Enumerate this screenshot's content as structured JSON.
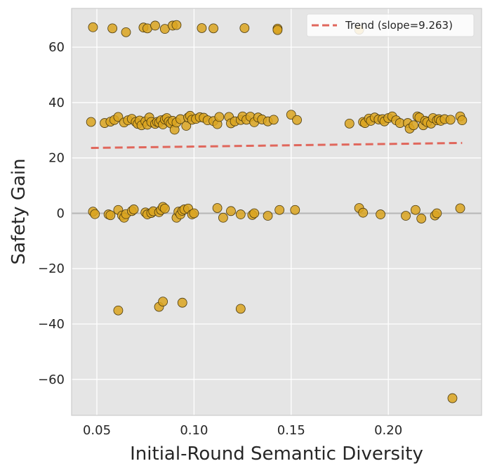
{
  "chart_data": {
    "type": "scatter",
    "title": "",
    "xlabel": "Initial-Round Semantic Diversity",
    "ylabel": "Safety Gain",
    "xlim": [
      0.037,
      0.248
    ],
    "ylim": [
      -73,
      74
    ],
    "xticks": [
      0.05,
      0.1,
      0.15,
      0.2
    ],
    "xtick_labels": [
      "0.05",
      "0.10",
      "0.15",
      "0.20"
    ],
    "yticks": [
      -60,
      -40,
      -20,
      0,
      20,
      40,
      60
    ],
    "ytick_labels": [
      "−60",
      "−40",
      "−20",
      "0",
      "20",
      "40",
      "60"
    ],
    "grid": true,
    "zero_line": 0,
    "legend": {
      "location": "top-right",
      "entries": [
        {
          "label": "Trend (slope=9.263)"
        }
      ]
    },
    "point_color": "#DAA520",
    "point_edge": "#4a3a10",
    "trend_color": "#E0675C",
    "trend": {
      "slope": 9.263,
      "x": [
        0.047,
        0.238
      ],
      "y": [
        23.6,
        25.4
      ]
    },
    "points": [
      [
        0.048,
        67.2
      ],
      [
        0.058,
        66.8
      ],
      [
        0.065,
        65.4
      ],
      [
        0.074,
        67.1
      ],
      [
        0.076,
        66.8
      ],
      [
        0.08,
        67.8
      ],
      [
        0.085,
        66.6
      ],
      [
        0.089,
        67.8
      ],
      [
        0.091,
        68.0
      ],
      [
        0.104,
        66.9
      ],
      [
        0.11,
        66.8
      ],
      [
        0.126,
        66.9
      ],
      [
        0.143,
        66.7
      ],
      [
        0.143,
        66.2
      ],
      [
        0.185,
        66.3
      ],
      [
        0.047,
        33.0
      ],
      [
        0.054,
        32.6
      ],
      [
        0.057,
        33.1
      ],
      [
        0.059,
        33.7
      ],
      [
        0.061,
        34.8
      ],
      [
        0.064,
        32.8
      ],
      [
        0.066,
        33.6
      ],
      [
        0.068,
        34.1
      ],
      [
        0.07,
        33.0
      ],
      [
        0.071,
        32.3
      ],
      [
        0.072,
        33.5
      ],
      [
        0.073,
        31.8
      ],
      [
        0.075,
        33.2
      ],
      [
        0.076,
        32.0
      ],
      [
        0.077,
        34.6
      ],
      [
        0.078,
        33.0
      ],
      [
        0.08,
        32.3
      ],
      [
        0.081,
        33.0
      ],
      [
        0.082,
        32.8
      ],
      [
        0.083,
        33.6
      ],
      [
        0.084,
        32.1
      ],
      [
        0.085,
        33.9
      ],
      [
        0.086,
        34.4
      ],
      [
        0.087,
        33.1
      ],
      [
        0.088,
        32.5
      ],
      [
        0.089,
        33.4
      ],
      [
        0.09,
        30.2
      ],
      [
        0.091,
        32.8
      ],
      [
        0.093,
        34.0
      ],
      [
        0.096,
        31.6
      ],
      [
        0.097,
        34.6
      ],
      [
        0.098,
        35.2
      ],
      [
        0.099,
        33.8
      ],
      [
        0.101,
        34.1
      ],
      [
        0.103,
        34.7
      ],
      [
        0.105,
        34.5
      ],
      [
        0.107,
        33.6
      ],
      [
        0.11,
        33.3
      ],
      [
        0.112,
        32.2
      ],
      [
        0.113,
        34.8
      ],
      [
        0.118,
        34.8
      ],
      [
        0.119,
        32.5
      ],
      [
        0.121,
        33.2
      ],
      [
        0.124,
        33.7
      ],
      [
        0.125,
        35.0
      ],
      [
        0.127,
        33.8
      ],
      [
        0.129,
        34.9
      ],
      [
        0.131,
        32.9
      ],
      [
        0.133,
        34.6
      ],
      [
        0.135,
        33.9
      ],
      [
        0.138,
        33.2
      ],
      [
        0.141,
        33.8
      ],
      [
        0.15,
        35.6
      ],
      [
        0.153,
        33.7
      ],
      [
        0.18,
        32.4
      ],
      [
        0.187,
        33.0
      ],
      [
        0.188,
        32.6
      ],
      [
        0.19,
        34.2
      ],
      [
        0.191,
        33.4
      ],
      [
        0.193,
        34.6
      ],
      [
        0.195,
        33.9
      ],
      [
        0.197,
        34.0
      ],
      [
        0.198,
        33.2
      ],
      [
        0.2,
        34.4
      ],
      [
        0.202,
        35.0
      ],
      [
        0.204,
        33.6
      ],
      [
        0.206,
        32.6
      ],
      [
        0.21,
        32.6
      ],
      [
        0.211,
        30.6
      ],
      [
        0.213,
        31.8
      ],
      [
        0.215,
        35.0
      ],
      [
        0.216,
        34.6
      ],
      [
        0.218,
        31.8
      ],
      [
        0.219,
        33.4
      ],
      [
        0.22,
        32.9
      ],
      [
        0.222,
        32.4
      ],
      [
        0.223,
        34.4
      ],
      [
        0.225,
        33.6
      ],
      [
        0.226,
        34.0
      ],
      [
        0.227,
        33.4
      ],
      [
        0.229,
        34.0
      ],
      [
        0.232,
        33.8
      ],
      [
        0.237,
        35.0
      ],
      [
        0.238,
        33.6
      ],
      [
        0.048,
        0.6
      ],
      [
        0.049,
        -0.3
      ],
      [
        0.056,
        -0.4
      ],
      [
        0.057,
        -0.7
      ],
      [
        0.061,
        1.2
      ],
      [
        0.063,
        -0.8
      ],
      [
        0.064,
        -1.6
      ],
      [
        0.065,
        -0.3
      ],
      [
        0.068,
        0.8
      ],
      [
        0.069,
        1.4
      ],
      [
        0.075,
        0.3
      ],
      [
        0.076,
        -0.4
      ],
      [
        0.078,
        0.1
      ],
      [
        0.079,
        0.7
      ],
      [
        0.082,
        0.4
      ],
      [
        0.083,
        1.2
      ],
      [
        0.084,
        2.3
      ],
      [
        0.085,
        1.7
      ],
      [
        0.091,
        -1.6
      ],
      [
        0.092,
        0.6
      ],
      [
        0.093,
        -0.4
      ],
      [
        0.094,
        0.9
      ],
      [
        0.095,
        1.4
      ],
      [
        0.097,
        1.7
      ],
      [
        0.099,
        -0.4
      ],
      [
        0.1,
        0.0
      ],
      [
        0.112,
        1.9
      ],
      [
        0.115,
        -1.6
      ],
      [
        0.119,
        0.8
      ],
      [
        0.124,
        -0.4
      ],
      [
        0.13,
        -0.6
      ],
      [
        0.131,
        0.0
      ],
      [
        0.138,
        -0.9
      ],
      [
        0.144,
        1.2
      ],
      [
        0.152,
        1.2
      ],
      [
        0.185,
        1.9
      ],
      [
        0.187,
        0.2
      ],
      [
        0.196,
        -0.4
      ],
      [
        0.209,
        -0.9
      ],
      [
        0.214,
        1.2
      ],
      [
        0.217,
        -1.9
      ],
      [
        0.224,
        -0.8
      ],
      [
        0.225,
        0.0
      ],
      [
        0.237,
        1.8
      ],
      [
        0.061,
        -35.1
      ],
      [
        0.082,
        -33.8
      ],
      [
        0.084,
        -31.9
      ],
      [
        0.094,
        -32.3
      ],
      [
        0.124,
        -34.5
      ],
      [
        0.233,
        -66.8
      ]
    ]
  }
}
